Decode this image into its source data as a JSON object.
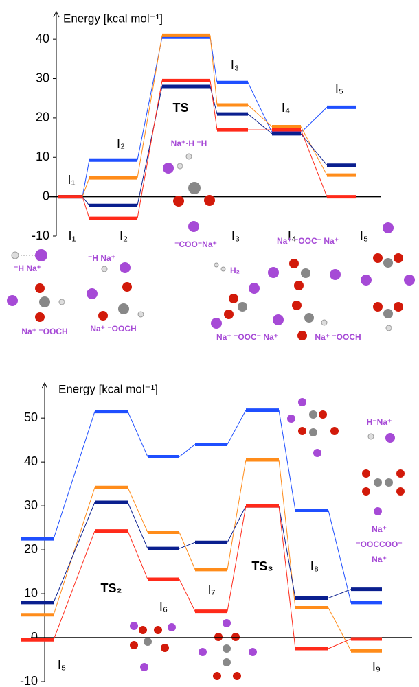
{
  "chart_data": [
    {
      "type": "level",
      "y_label": "Energy [kcal mol⁻¹]",
      "categories": [
        "I₁",
        "I₂",
        "TS",
        "I₃",
        "I₄",
        "I₅"
      ],
      "structure_labels": [
        "I₁",
        "I₂",
        "I₃",
        "I₄",
        "I₅"
      ],
      "captions": [
        "⁻H Na⁺",
        "Na⁺ ⁻OOCH",
        "⁻H Na⁺",
        "Na⁺ ⁻OOCH",
        "Na⁺·H ⁺H",
        "⁻COO⁻Na⁺",
        "H₂",
        "Na⁺ ⁻OOC⁻ Na⁺",
        "Na⁺ ⁻OOC⁻ Na⁺",
        "Na⁺ ⁻OOCH"
      ],
      "series": [
        {
          "color": "#1f4fff",
          "values": [
            0,
            9.3,
            40.5,
            29,
            16.3,
            22.7
          ]
        },
        {
          "color": "#ff8c1a",
          "values": [
            0,
            4.8,
            41,
            23.3,
            17.8,
            5.5
          ]
        },
        {
          "color": "#0a1f8f",
          "values": [
            0,
            -2.2,
            28,
            21,
            16,
            8
          ]
        },
        {
          "color": "#ff2a1a",
          "values": [
            0,
            -5.5,
            29.5,
            17,
            17,
            0
          ]
        }
      ],
      "ylim": [
        -10,
        47
      ],
      "yticks": [
        -10,
        0,
        10,
        20,
        30,
        40
      ]
    },
    {
      "type": "level",
      "y_label": "Energy [kcal mol⁻¹]",
      "categories": [
        "I₅",
        "TS₂",
        "I₆",
        "I₇",
        "TS₃",
        "I₈",
        "I₉"
      ],
      "captions": [
        "H⁻Na⁺",
        "Na⁺",
        "⁻OOCCOO⁻",
        "Na⁺"
      ],
      "series": [
        {
          "color": "#1f4fff",
          "values": [
            22.5,
            51.5,
            41.2,
            44,
            51.8,
            29,
            8
          ]
        },
        {
          "color": "#ff8c1a",
          "values": [
            5.2,
            34.2,
            24,
            15.5,
            40.5,
            6.8,
            -3
          ]
        },
        {
          "color": "#0a1f8f",
          "values": [
            8,
            30.8,
            20.3,
            21.7,
            30,
            9,
            11
          ]
        },
        {
          "color": "#ff2a1a",
          "values": [
            -0.5,
            24.3,
            13.3,
            6,
            30,
            -2.5,
            -0.3
          ]
        }
      ],
      "ylim": [
        -10,
        58
      ],
      "yticks": [
        -10,
        0,
        10,
        20,
        30,
        40,
        50
      ]
    }
  ]
}
